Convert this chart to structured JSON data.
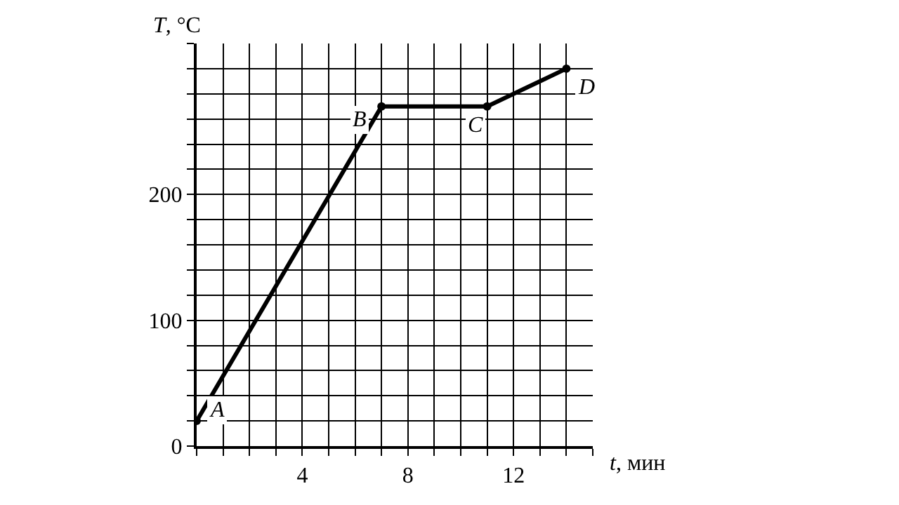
{
  "chart_data": {
    "type": "line",
    "xlabel": "t, мин",
    "ylabel": "T, °C",
    "x": [
      0,
      7,
      11,
      14
    ],
    "series": [
      {
        "color": "#000000",
        "values": [
          20,
          270,
          270,
          300
        ]
      }
    ],
    "xlim": [
      0,
      15
    ],
    "ylim": [
      0,
      320
    ],
    "xticks": [
      {
        "value": 0,
        "label": null
      },
      {
        "value": 1,
        "label": null
      },
      {
        "value": 2,
        "label": null
      },
      {
        "value": 3,
        "label": null
      },
      4,
      {
        "value": 5,
        "label": null
      },
      {
        "value": 6,
        "label": null
      },
      {
        "value": 7,
        "label": null
      },
      8,
      {
        "value": 9,
        "label": null
      },
      {
        "value": 10,
        "label": null
      },
      {
        "value": 11,
        "label": null
      },
      12,
      {
        "value": 13,
        "label": null
      },
      {
        "value": 14,
        "label": null
      },
      {
        "value": 15,
        "label": null
      }
    ],
    "yticks": [
      0,
      {
        "value": 20,
        "label": null
      },
      {
        "value": 40,
        "label": null
      },
      {
        "value": 60,
        "label": null
      },
      {
        "value": 80,
        "label": null
      },
      100,
      {
        "value": 120,
        "label": null
      },
      {
        "value": 140,
        "label": null
      },
      {
        "value": 160,
        "label": null
      },
      {
        "value": 180,
        "label": null
      },
      200,
      {
        "value": 220,
        "label": null
      },
      {
        "value": 240,
        "label": null
      },
      {
        "value": 260,
        "label": null
      },
      {
        "value": 280,
        "label": null
      },
      {
        "value": 300,
        "label": null
      },
      {
        "value": 320,
        "label": null
      }
    ],
    "grid": true,
    "marker": "circle",
    "line_style": "solid",
    "annotations": [
      {
        "text": "A",
        "x": 0,
        "y": 20
      },
      {
        "text": "B",
        "x": 7,
        "y": 270
      },
      {
        "text": "C",
        "x": 11,
        "y": 270
      },
      {
        "text": "D",
        "x": 14,
        "y": 300
      }
    ]
  }
}
